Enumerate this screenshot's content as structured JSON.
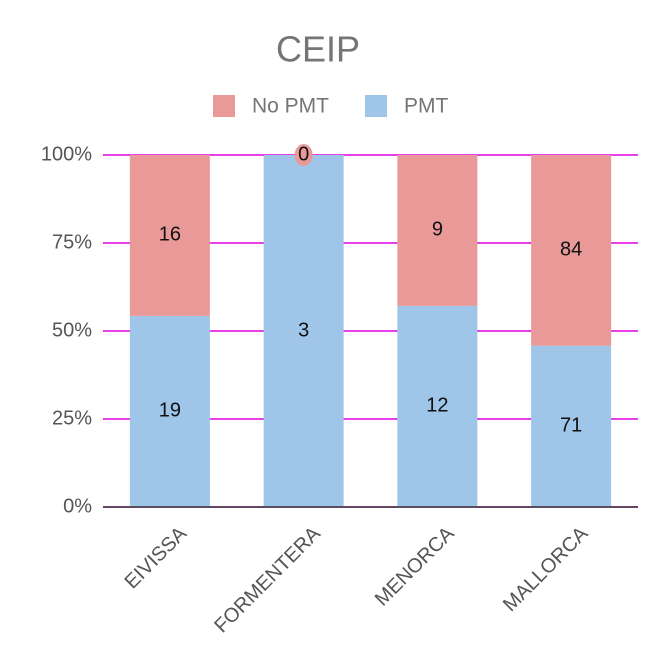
{
  "chart_data": {
    "type": "bar",
    "stacking": "percent",
    "title": "CEIP",
    "categories": [
      "EIVISSA",
      "FORMENTERA",
      "MENORCA",
      "MALLORCA"
    ],
    "series": [
      {
        "name": "No PMT",
        "color": "#ea9999",
        "values": [
          16,
          0,
          9,
          84
        ]
      },
      {
        "name": "PMT",
        "color": "#9fc5e8",
        "values": [
          19,
          3,
          12,
          71
        ]
      }
    ],
    "ylim": [
      0,
      100
    ],
    "yticks": [
      {
        "value": 0,
        "label": "0%"
      },
      {
        "value": 25,
        "label": "25%"
      },
      {
        "value": 50,
        "label": "50%"
      },
      {
        "value": 75,
        "label": "75%"
      },
      {
        "value": 100,
        "label": "100%"
      }
    ],
    "grid": true,
    "grid_color": "#e000e0",
    "legend": "top"
  }
}
